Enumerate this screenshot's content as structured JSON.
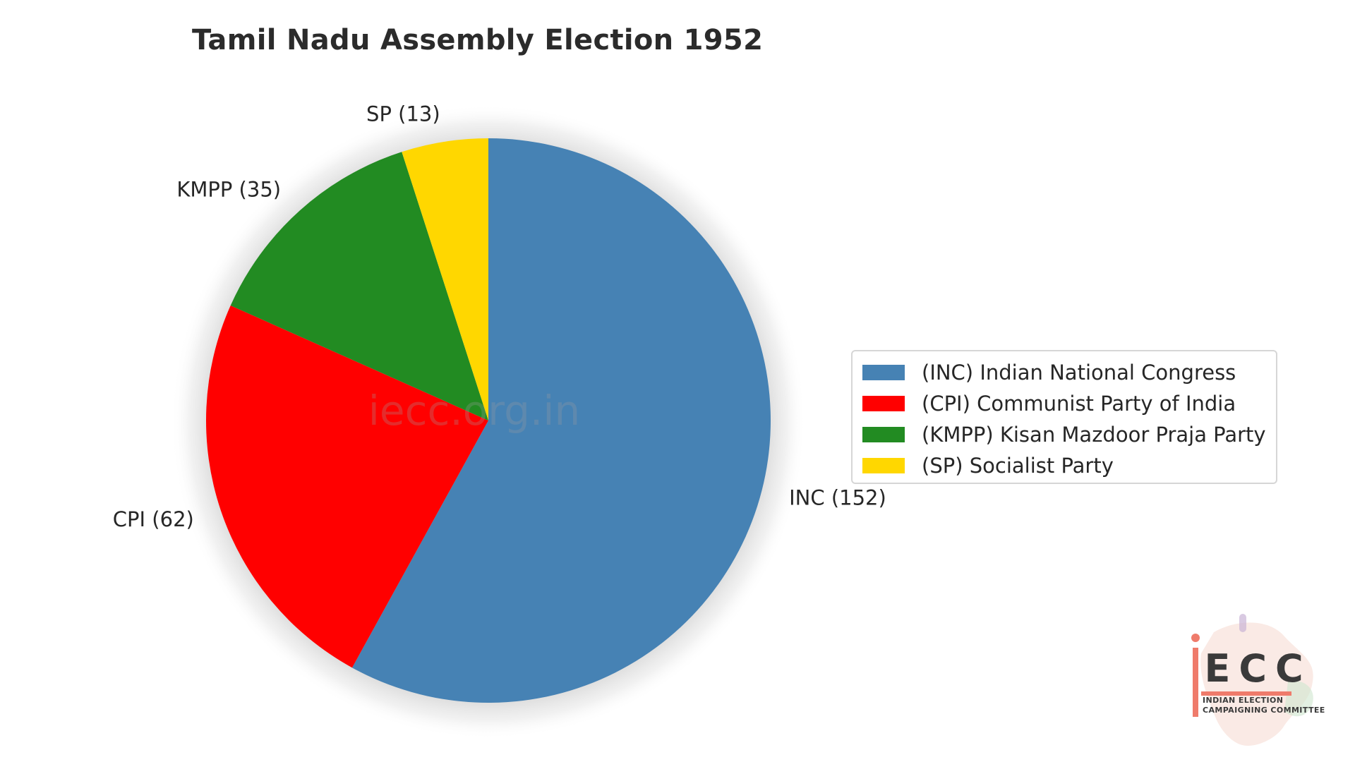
{
  "chart_data": {
    "type": "pie",
    "title": "Tamil Nadu Assembly Election 1952",
    "slices": [
      {
        "short": "INC",
        "name": "(INC) Indian National Congress",
        "value": 152,
        "label": "INC (152)",
        "color": "#4682b4"
      },
      {
        "short": "CPI",
        "name": "(CPI) Communist Party of India",
        "value": 62,
        "label": "CPI (62)",
        "color": "#ff0000"
      },
      {
        "short": "KMPP",
        "name": "(KMPP) Kisan Mazdoor Praja Party",
        "value": 35,
        "label": "KMPP (35)",
        "color": "#228b22"
      },
      {
        "short": "SP",
        "name": "(SP) Socialist Party",
        "value": 13,
        "label": "SP (13)",
        "color": "#ffd700"
      }
    ],
    "start_angle_deg": 90,
    "direction": "clockwise",
    "legend_position": "right"
  },
  "watermark": "iecc.org.in",
  "logo": {
    "name": "iECC",
    "line1": "INDIAN ELECTION",
    "line2": "CAMPAIGNING COMMITTEE"
  }
}
